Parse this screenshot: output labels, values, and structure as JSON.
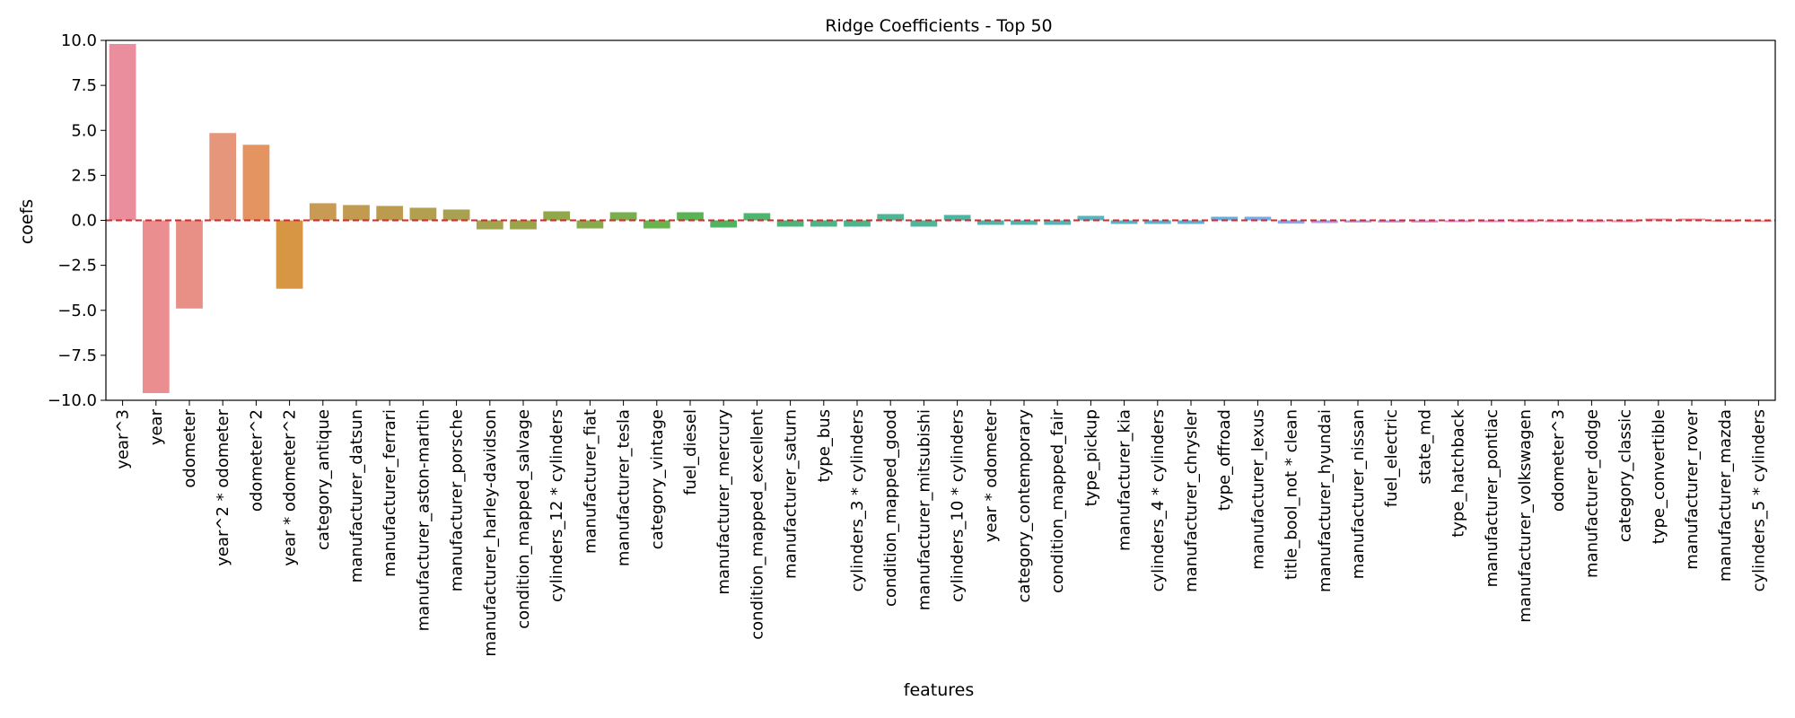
{
  "chart_data": {
    "type": "bar",
    "title": "Ridge Coefficients - Top 50",
    "xlabel": "features",
    "ylabel": "coefs",
    "ylim": [
      -10,
      10
    ],
    "yticks": [
      -10.0,
      -7.5,
      -5.0,
      -2.5,
      0.0,
      2.5,
      5.0,
      7.5,
      10.0
    ],
    "ytick_labels": [
      "−10.0",
      "−7.5",
      "−5.0",
      "−2.5",
      "0.0",
      "2.5",
      "5.0",
      "7.5",
      "10.0"
    ],
    "grid": false,
    "legend": "none",
    "reference_line": {
      "y": 0,
      "style": "dashed",
      "color": "#d62728"
    },
    "categories": [
      "year^3",
      "year",
      "odometer",
      "year^2 * odometer",
      "odometer^2",
      "year * odometer^2",
      "category_antique",
      "manufacturer_datsun",
      "manufacturer_ferrari",
      "manufacturer_aston-martin",
      "manufacturer_porsche",
      "manufacturer_harley-davidson",
      "condition_mapped_salvage",
      "cylinders_12 * cylinders",
      "manufacturer_fiat",
      "manufacturer_tesla",
      "category_vintage",
      "fuel_diesel",
      "manufacturer_mercury",
      "condition_mapped_excellent",
      "manufacturer_saturn",
      "type_bus",
      "cylinders_3 * cylinders",
      "condition_mapped_good",
      "manufacturer_mitsubishi",
      "cylinders_10 * cylinders",
      "year * odometer",
      "category_contemporary",
      "condition_mapped_fair",
      "type_pickup",
      "manufacturer_kia",
      "cylinders_4 * cylinders",
      "manufacturer_chrysler",
      "type_offroad",
      "manufacturer_lexus",
      "title_bool_not * clean",
      "manufacturer_hyundai",
      "manufacturer_nissan",
      "fuel_electric",
      "state_md",
      "type_hatchback",
      "manufacturer_pontiac",
      "manufacturer_volkswagen",
      "odometer^3",
      "manufacturer_dodge",
      "category_classic",
      "type_convertible",
      "manufacturer_rover",
      "manufacturer_mazda",
      "cylinders_5 * cylinders"
    ],
    "values": [
      9.8,
      -9.6,
      -4.9,
      4.85,
      4.2,
      -3.8,
      0.95,
      0.85,
      0.8,
      0.7,
      0.6,
      -0.5,
      -0.5,
      0.5,
      -0.45,
      0.45,
      -0.45,
      0.45,
      -0.4,
      0.4,
      -0.35,
      -0.35,
      -0.35,
      0.35,
      -0.35,
      0.3,
      -0.25,
      -0.25,
      -0.25,
      0.25,
      -0.2,
      -0.2,
      -0.2,
      0.2,
      0.2,
      -0.18,
      -0.15,
      -0.12,
      -0.12,
      -0.12,
      -0.1,
      -0.1,
      -0.1,
      -0.1,
      -0.1,
      -0.1,
      0.1,
      0.1,
      -0.08,
      -0.08
    ],
    "colors": [
      "#ea8e9e",
      "#ea8e90",
      "#e88f86",
      "#e6967b",
      "#e39461",
      "#d69643",
      "#c99a53",
      "#c09b50",
      "#bb9c4f",
      "#b29f50",
      "#a9a152",
      "#a2a34e",
      "#9aa54b",
      "#91a84a",
      "#87ab4c",
      "#79ae4e",
      "#68b24f",
      "#59b554",
      "#4fb461",
      "#4cb66e",
      "#4db37c",
      "#4db486",
      "#4cb58c",
      "#4db695",
      "#4db79c",
      "#4db5a3",
      "#4eb5aa",
      "#4eb6b1",
      "#50b6b8",
      "#51b6c0",
      "#55b4c8",
      "#57b3d0",
      "#5cb0d8",
      "#66aee0",
      "#74abe8",
      "#8aa5ee",
      "#9f9ff0",
      "#b199ef",
      "#c094ed",
      "#cd90e9",
      "#d88de3",
      "#e28ad9",
      "#e88cce",
      "#eb8ec4",
      "#ed8fbb",
      "#ee90b0",
      "#ef91a5",
      "#ef929c",
      "#ee9392",
      "#ee9390"
    ]
  }
}
